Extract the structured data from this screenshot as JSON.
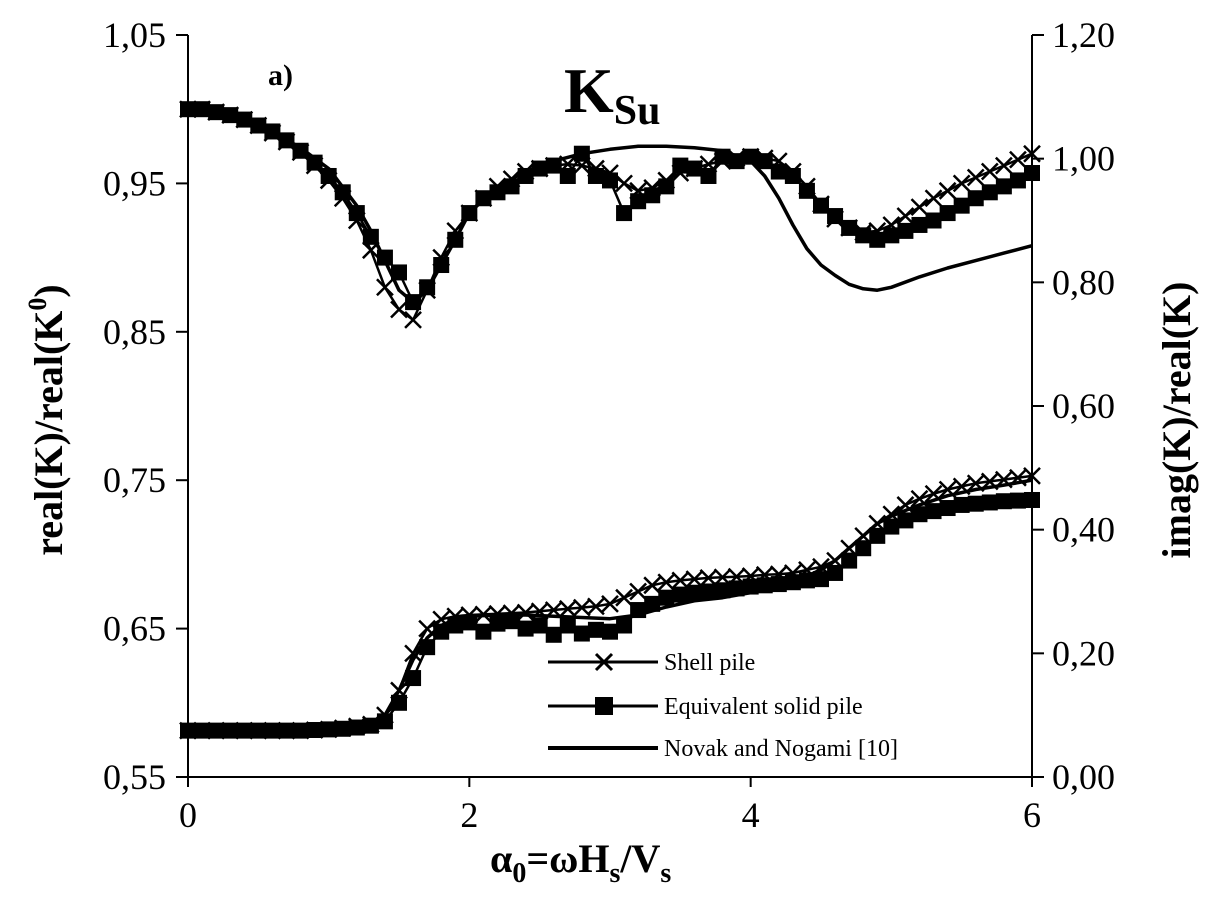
{
  "chart_data": {
    "type": "line",
    "title_main": "K",
    "title_sub": "Su",
    "panel_label": "a)",
    "xlabel": {
      "alpha": "α",
      "sub0": "0",
      "eq": "=ωH",
      "subs": "s",
      "slash": "/V",
      "subs2": "s"
    },
    "ylabel_left": {
      "pre": "real(K)/real(K",
      "sup": "0",
      "post": ")"
    },
    "ylabel_right": "imag(K)/real(K)",
    "xlim": [
      0,
      6
    ],
    "ylim_left": [
      0.55,
      1.05
    ],
    "ylim_right": [
      0.0,
      1.2
    ],
    "x_ticks": [
      "0",
      "2",
      "4",
      "6"
    ],
    "y_ticks_left": [
      "0,55",
      "0,65",
      "0,75",
      "0,85",
      "0,95",
      "1,05"
    ],
    "y_ticks_right": [
      "0,00",
      "0,20",
      "0,40",
      "0,60",
      "0,80",
      "1,00",
      "1,20"
    ],
    "legend_position": "bottom-center",
    "series": [
      {
        "name": "Shell pile",
        "marker": "x",
        "axis": "left",
        "real_x": [
          0,
          0.1,
          0.2,
          0.3,
          0.4,
          0.5,
          0.6,
          0.7,
          0.8,
          0.9,
          1.0,
          1.1,
          1.2,
          1.3,
          1.4,
          1.5,
          1.6,
          1.7,
          1.8,
          1.9,
          2.0,
          2.1,
          2.2,
          2.3,
          2.4,
          2.5,
          2.6,
          2.7,
          2.8,
          2.9,
          3.0,
          3.1,
          3.2,
          3.3,
          3.4,
          3.5,
          3.6,
          3.7,
          3.8,
          3.9,
          4.0,
          4.1,
          4.2,
          4.3,
          4.4,
          4.5,
          4.6,
          4.7,
          4.8,
          4.9,
          5.0,
          5.1,
          5.2,
          5.3,
          5.4,
          5.5,
          5.6,
          5.7,
          5.8,
          5.9,
          6.0
        ],
        "real_y": [
          1.0,
          1.0,
          0.998,
          0.996,
          0.993,
          0.989,
          0.984,
          0.978,
          0.971,
          0.962,
          0.952,
          0.94,
          0.925,
          0.905,
          0.88,
          0.865,
          0.858,
          0.878,
          0.9,
          0.918,
          0.93,
          0.94,
          0.948,
          0.953,
          0.958,
          0.96,
          0.962,
          0.963,
          0.962,
          0.96,
          0.957,
          0.95,
          0.945,
          0.947,
          0.952,
          0.957,
          0.96,
          0.963,
          0.965,
          0.967,
          0.968,
          0.967,
          0.965,
          0.958,
          0.948,
          0.936,
          0.926,
          0.92,
          0.917,
          0.918,
          0.922,
          0.928,
          0.934,
          0.94,
          0.945,
          0.95,
          0.954,
          0.958,
          0.962,
          0.966,
          0.97
        ],
        "imag_y": [
          0.075,
          0.075,
          0.075,
          0.075,
          0.075,
          0.075,
          0.075,
          0.075,
          0.075,
          0.076,
          0.077,
          0.079,
          0.082,
          0.085,
          0.1,
          0.14,
          0.2,
          0.24,
          0.255,
          0.26,
          0.262,
          0.263,
          0.264,
          0.265,
          0.266,
          0.268,
          0.27,
          0.272,
          0.274,
          0.276,
          0.28,
          0.29,
          0.3,
          0.31,
          0.315,
          0.318,
          0.32,
          0.322,
          0.323,
          0.324,
          0.325,
          0.327,
          0.328,
          0.33,
          0.335,
          0.34,
          0.35,
          0.37,
          0.39,
          0.41,
          0.425,
          0.44,
          0.45,
          0.458,
          0.465,
          0.47,
          0.475,
          0.478,
          0.481,
          0.484,
          0.487
        ]
      },
      {
        "name": "Equivalent solid pile",
        "marker": "square",
        "axis": "left",
        "real_x": [
          0,
          0.1,
          0.2,
          0.3,
          0.4,
          0.5,
          0.6,
          0.7,
          0.8,
          0.9,
          1.0,
          1.1,
          1.2,
          1.3,
          1.4,
          1.5,
          1.6,
          1.7,
          1.8,
          1.9,
          2.0,
          2.1,
          2.2,
          2.3,
          2.4,
          2.5,
          2.6,
          2.7,
          2.8,
          2.9,
          3.0,
          3.1,
          3.2,
          3.3,
          3.4,
          3.5,
          3.6,
          3.7,
          3.8,
          3.9,
          4.0,
          4.1,
          4.2,
          4.3,
          4.4,
          4.5,
          4.6,
          4.7,
          4.8,
          4.9,
          5.0,
          5.1,
          5.2,
          5.3,
          5.4,
          5.5,
          5.6,
          5.7,
          5.8,
          5.9,
          6.0
        ],
        "real_y": [
          1.0,
          1.0,
          0.998,
          0.996,
          0.993,
          0.989,
          0.985,
          0.979,
          0.972,
          0.964,
          0.955,
          0.944,
          0.93,
          0.914,
          0.9,
          0.89,
          0.87,
          0.88,
          0.895,
          0.912,
          0.93,
          0.94,
          0.944,
          0.948,
          0.955,
          0.96,
          0.962,
          0.955,
          0.97,
          0.955,
          0.952,
          0.93,
          0.938,
          0.942,
          0.948,
          0.962,
          0.96,
          0.955,
          0.968,
          0.965,
          0.968,
          0.965,
          0.958,
          0.955,
          0.945,
          0.935,
          0.928,
          0.92,
          0.915,
          0.912,
          0.915,
          0.918,
          0.922,
          0.925,
          0.93,
          0.935,
          0.94,
          0.944,
          0.948,
          0.952,
          0.957
        ],
        "imag_y": [
          0.075,
          0.075,
          0.075,
          0.075,
          0.075,
          0.075,
          0.075,
          0.075,
          0.075,
          0.076,
          0.077,
          0.078,
          0.08,
          0.083,
          0.09,
          0.12,
          0.16,
          0.21,
          0.235,
          0.245,
          0.25,
          0.235,
          0.248,
          0.252,
          0.24,
          0.245,
          0.23,
          0.245,
          0.232,
          0.238,
          0.235,
          0.245,
          0.27,
          0.28,
          0.29,
          0.295,
          0.298,
          0.3,
          0.302,
          0.305,
          0.308,
          0.31,
          0.312,
          0.315,
          0.318,
          0.32,
          0.33,
          0.35,
          0.37,
          0.39,
          0.405,
          0.415,
          0.425,
          0.43,
          0.435,
          0.44,
          0.442,
          0.444,
          0.446,
          0.447,
          0.448
        ]
      },
      {
        "name": "Novak and Nogami [10]",
        "marker": "none",
        "axis": "left",
        "real_x": [
          0,
          0.2,
          0.4,
          0.6,
          0.8,
          1.0,
          1.2,
          1.3,
          1.4,
          1.5,
          1.6,
          1.7,
          1.8,
          1.9,
          2.0,
          2.2,
          2.4,
          2.6,
          2.8,
          3.0,
          3.2,
          3.4,
          3.6,
          3.8,
          4.0,
          4.1,
          4.2,
          4.3,
          4.4,
          4.5,
          4.6,
          4.7,
          4.8,
          4.9,
          5.0,
          5.2,
          5.4,
          5.6,
          5.8,
          6.0
        ],
        "real_y": [
          1.0,
          0.998,
          0.993,
          0.985,
          0.974,
          0.96,
          0.935,
          0.918,
          0.898,
          0.878,
          0.87,
          0.878,
          0.895,
          0.912,
          0.93,
          0.948,
          0.958,
          0.965,
          0.97,
          0.973,
          0.975,
          0.975,
          0.974,
          0.972,
          0.965,
          0.955,
          0.94,
          0.922,
          0.906,
          0.895,
          0.888,
          0.882,
          0.879,
          0.878,
          0.88,
          0.887,
          0.893,
          0.898,
          0.903,
          0.908
        ],
        "imag_y": [
          0.075,
          0.075,
          0.075,
          0.075,
          0.075,
          0.077,
          0.08,
          0.085,
          0.1,
          0.14,
          0.19,
          0.225,
          0.245,
          0.255,
          0.26,
          0.262,
          0.262,
          0.26,
          0.258,
          0.256,
          0.262,
          0.275,
          0.285,
          0.29,
          0.298,
          0.305,
          0.31,
          0.318,
          0.325,
          0.335,
          0.35,
          0.37,
          0.39,
          0.41,
          0.422,
          0.44,
          0.455,
          0.465,
          0.472,
          0.48
        ]
      }
    ]
  }
}
